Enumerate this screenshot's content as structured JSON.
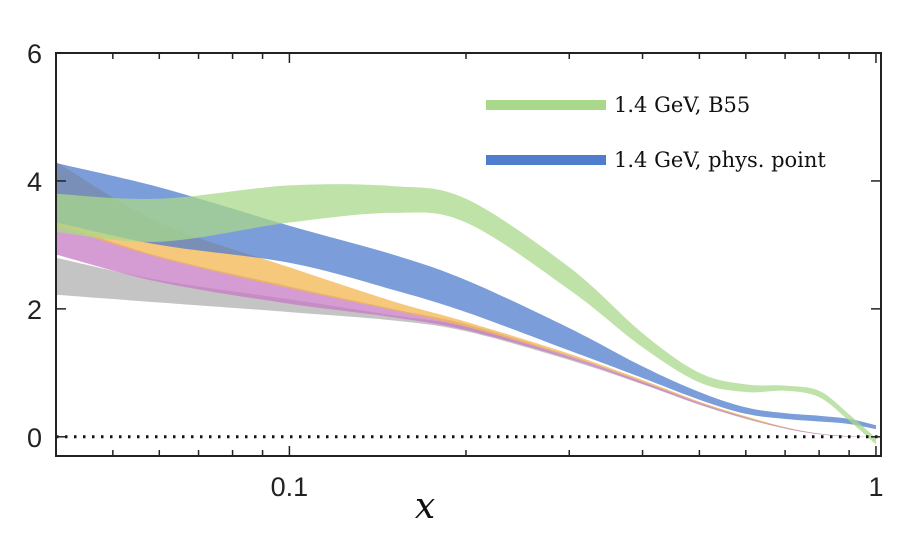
{
  "chart_data": {
    "type": "area",
    "title": "",
    "xlabel": "x",
    "ylabel": "",
    "x_scale": "log",
    "xlim": [
      0.04,
      1.02
    ],
    "ylim": [
      -0.3,
      6.0
    ],
    "xticks": [
      {
        "value": 0.1,
        "label": "0.1"
      },
      {
        "value": 1,
        "label": "1"
      }
    ],
    "yticks": [
      {
        "value": 0,
        "label": "0"
      },
      {
        "value": 2,
        "label": "2"
      },
      {
        "value": 4,
        "label": "4"
      },
      {
        "value": 6,
        "label": "6"
      }
    ],
    "grid": false,
    "reference_line": {
      "y": 0,
      "style": "dotted"
    },
    "legend_position": "top-right",
    "series": [
      {
        "name": "",
        "color": "#b0b0b0",
        "x": [
          0.04,
          0.06,
          0.1,
          0.15,
          0.2,
          0.3,
          0.4,
          0.5,
          0.6,
          0.7,
          0.8,
          0.9,
          1.0
        ],
        "lower": [
          2.22,
          2.1,
          1.95,
          1.82,
          1.65,
          1.2,
          0.82,
          0.5,
          0.28,
          0.13,
          0.04,
          0.0,
          0.0
        ],
        "upper": [
          2.8,
          2.45,
          2.15,
          1.9,
          1.72,
          1.24,
          0.85,
          0.52,
          0.3,
          0.14,
          0.05,
          0.01,
          0.0
        ]
      },
      {
        "name": "",
        "color": "#c77bc4",
        "x": [
          0.04,
          0.06,
          0.1,
          0.15,
          0.2,
          0.3,
          0.4,
          0.5,
          0.6,
          0.7,
          0.8,
          0.9,
          1.0
        ],
        "lower": [
          2.85,
          2.42,
          2.08,
          1.87,
          1.67,
          1.22,
          0.83,
          0.51,
          0.29,
          0.13,
          0.04,
          0.0,
          0.0
        ],
        "upper": [
          3.35,
          2.82,
          2.35,
          2.0,
          1.76,
          1.27,
          0.87,
          0.54,
          0.31,
          0.15,
          0.05,
          0.01,
          0.0
        ]
      },
      {
        "name": "",
        "color": "#f2b550",
        "x": [
          0.04,
          0.06,
          0.1,
          0.15,
          0.2,
          0.3,
          0.4,
          0.5,
          0.6,
          0.7,
          0.8,
          0.9,
          1.0
        ],
        "lower": [
          3.3,
          2.8,
          2.32,
          1.98,
          1.72,
          1.26,
          0.86,
          0.53,
          0.3,
          0.14,
          0.05,
          0.01,
          0.0
        ],
        "upper": [
          4.3,
          3.35,
          2.65,
          2.12,
          1.8,
          1.3,
          0.89,
          0.55,
          0.32,
          0.15,
          0.05,
          0.01,
          0.0
        ]
      },
      {
        "name": "1.4 GeV, phys. point",
        "color": "#4f7ccc",
        "x": [
          0.04,
          0.06,
          0.1,
          0.15,
          0.2,
          0.3,
          0.4,
          0.5,
          0.6,
          0.7,
          0.8,
          0.9,
          1.0
        ],
        "lower": [
          3.35,
          3.0,
          2.72,
          2.3,
          1.95,
          1.35,
          0.92,
          0.58,
          0.36,
          0.28,
          0.24,
          0.2,
          0.12
        ],
        "upper": [
          4.28,
          3.9,
          3.3,
          2.85,
          2.45,
          1.7,
          1.1,
          0.7,
          0.46,
          0.37,
          0.33,
          0.28,
          0.18
        ]
      },
      {
        "name": "1.4 GeV, B55",
        "color": "#a9d88b",
        "x": [
          0.04,
          0.06,
          0.1,
          0.15,
          0.2,
          0.3,
          0.4,
          0.5,
          0.6,
          0.7,
          0.8,
          0.9,
          1.0
        ],
        "lower": [
          3.2,
          3.05,
          3.35,
          3.5,
          3.35,
          2.3,
          1.4,
          0.85,
          0.7,
          0.72,
          0.62,
          0.25,
          -0.12
        ],
        "upper": [
          3.8,
          3.72,
          3.93,
          3.92,
          3.72,
          2.65,
          1.62,
          1.0,
          0.82,
          0.8,
          0.72,
          0.35,
          -0.02
        ]
      }
    ]
  }
}
